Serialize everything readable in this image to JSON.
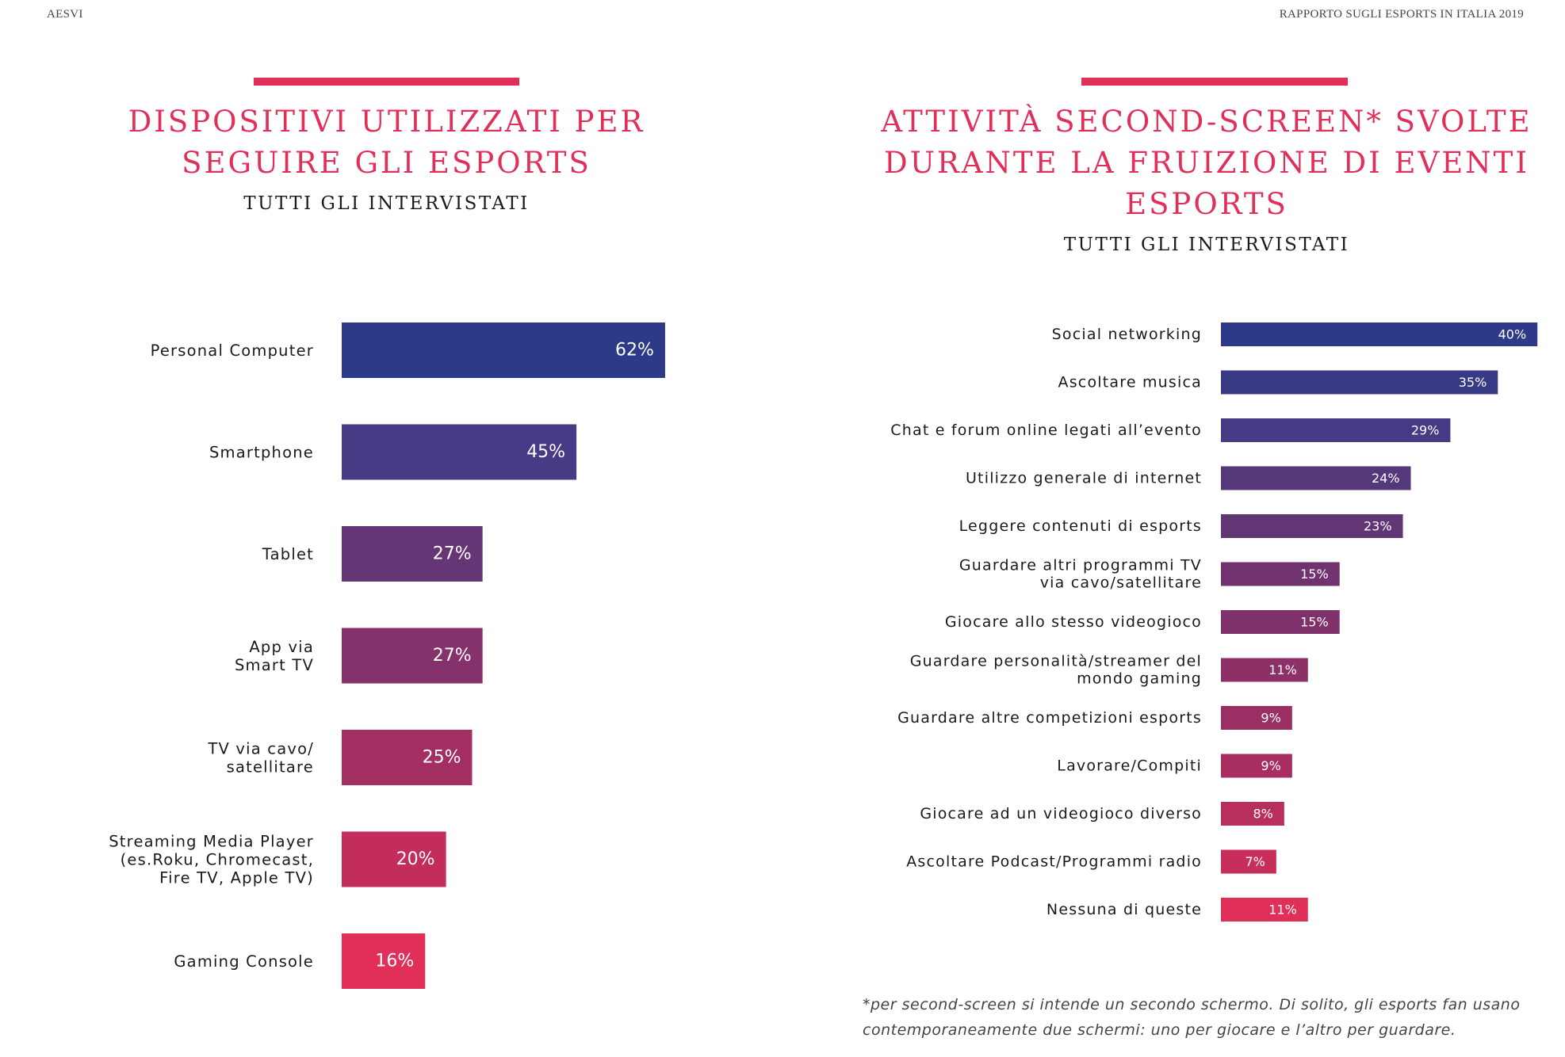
{
  "header": {
    "left": "AESVI",
    "right": "RAPPORTO SUGLI ESPORTS IN ITALIA 2019"
  },
  "left_panel": {
    "title": "DISPOSITIVI UTILIZZATI PER SEGUIRE GLI ESPORTS",
    "subtitle": "TUTTI GLI INTERVISTATI"
  },
  "right_panel": {
    "title": "ATTIVITÀ SECOND-SCREEN* SVOLTE DURANTE LA FRUIZIONE DI EVENTI ESPORTS",
    "subtitle": "TUTTI GLI INTERVISTATI",
    "footnote": "*per second-screen si intende un secondo schermo. Di solito, gli esports fan usano contemporaneamente due schermi: uno per giocare e l’altro per guardare."
  },
  "colors": {
    "accent": "#e0305a",
    "gradient": [
      "#2c3a87",
      "#4a3a85",
      "#6a3472",
      "#8a3068",
      "#a82e60",
      "#c82d5a",
      "#e0305a"
    ]
  },
  "chart_data": [
    {
      "type": "bar",
      "orientation": "horizontal",
      "title": "DISPOSITIVI UTILIZZATI PER SEGUIRE GLI ESPORTS",
      "subtitle": "TUTTI GLI INTERVISTATI",
      "unit": "%",
      "categories": [
        [
          "Personal Computer"
        ],
        [
          "Smartphone"
        ],
        [
          "Tablet"
        ],
        [
          "App via",
          "Smart TV"
        ],
        [
          "TV via cavo/",
          "satellitare"
        ],
        [
          "Streaming Media Player",
          "(es.Roku, Chromecast,",
          "Fire TV, Apple TV)"
        ],
        [
          "Gaming Console"
        ]
      ],
      "values": [
        62,
        45,
        27,
        27,
        25,
        20,
        16
      ],
      "labels": [
        "62%",
        "45%",
        "27%",
        "27%",
        "25%",
        "20%",
        "16%"
      ],
      "colors": [
        "#2c3a87",
        "#483a85",
        "#663575",
        "#85316c",
        "#a32e62",
        "#c22d5c",
        "#e0305a"
      ]
    },
    {
      "type": "bar",
      "orientation": "horizontal",
      "title": "ATTIVITÀ SECOND-SCREEN* SVOLTE DURANTE LA FRUIZIONE DI EVENTI ESPORTS",
      "subtitle": "TUTTI GLI INTERVISTATI",
      "unit": "%",
      "categories": [
        [
          "Social networking"
        ],
        [
          "Ascoltare musica"
        ],
        [
          "Chat e forum online legati all’evento"
        ],
        [
          "Utilizzo generale di internet"
        ],
        [
          "Leggere contenuti di esports"
        ],
        [
          "Guardare altri programmi TV",
          "via cavo/satellitare"
        ],
        [
          "Giocare allo stesso videogioco"
        ],
        [
          "Guardare personalità/streamer del",
          "mondo gaming"
        ],
        [
          "Guardare altre competizioni esports"
        ],
        [
          "Lavorare/Compiti"
        ],
        [
          "Giocare ad un videogioco diverso"
        ],
        [
          "Ascoltare Podcast/Programmi radio"
        ],
        [
          "Nessuna di queste"
        ]
      ],
      "values": [
        40,
        35,
        29,
        24,
        23,
        15,
        15,
        11,
        9,
        9,
        8,
        7,
        11
      ],
      "labels": [
        "40%",
        "35%",
        "29%",
        "24%",
        "23%",
        "15%",
        "15%",
        "11%",
        "9%",
        "9%",
        "8%",
        "7%",
        "11%"
      ],
      "colors": [
        "#2c3a87",
        "#383a86",
        "#463a85",
        "#543879",
        "#623574",
        "#70336f",
        "#7e316b",
        "#8c3067",
        "#9a2f63",
        "#a82e60",
        "#b82e5d",
        "#c82e5b",
        "#e0305a"
      ]
    }
  ]
}
